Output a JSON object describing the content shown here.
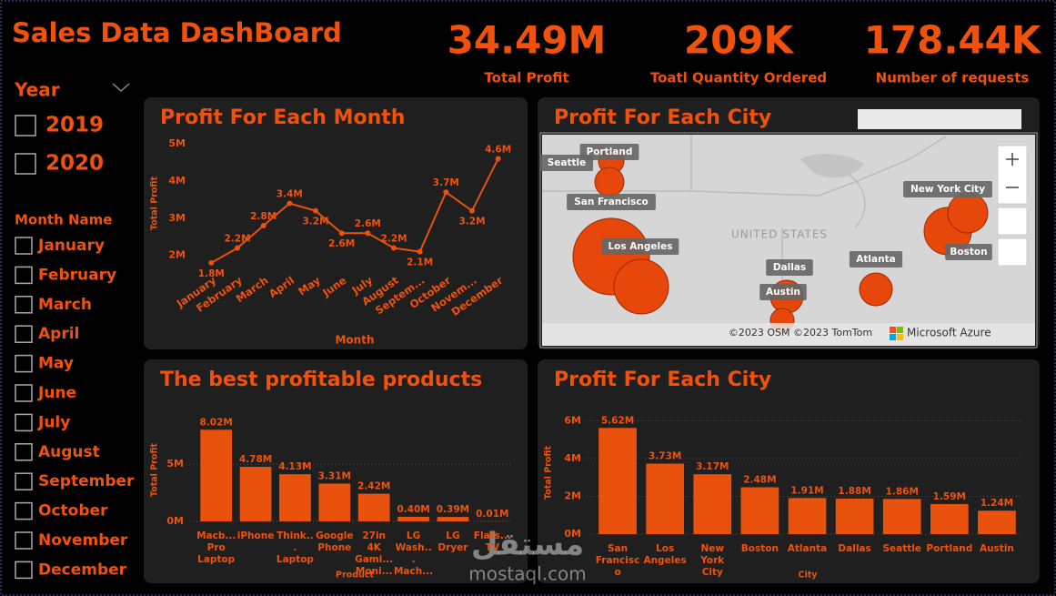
{
  "header": {
    "title": "Sales Data DashBoard"
  },
  "kpis": [
    {
      "value": "34.49M",
      "label": "Total Profit"
    },
    {
      "value": "209K",
      "label": "Toatl Quantity Ordered"
    },
    {
      "value": "178.44K",
      "label": "Number of requests"
    }
  ],
  "slicers": {
    "year": {
      "title": "Year",
      "options": [
        "2019",
        "2020"
      ]
    },
    "month": {
      "title": "Month Name",
      "options": [
        "January",
        "February",
        "March",
        "April",
        "May",
        "June",
        "July",
        "August",
        "September",
        "October",
        "November",
        "December"
      ]
    }
  },
  "chart_data": [
    {
      "type": "line",
      "title": "Profit For Each Month",
      "x_label": "Month",
      "y_label": "Total Profit",
      "categories": [
        "January",
        "February",
        "March",
        "April",
        "May",
        "June",
        "July",
        "August",
        "Septem...",
        "October",
        "Novem...",
        "December"
      ],
      "values": [
        1800000,
        2200000,
        2800000,
        3400000,
        3200000,
        2600000,
        2600000,
        2200000,
        2100000,
        3700000,
        3200000,
        4600000
      ],
      "value_labels": [
        "1.8M",
        "2.2M",
        "2.8M",
        "3.4M",
        "3.2M",
        "2.6M",
        "2.6M",
        "2.2M",
        "2.1M",
        "3.7M",
        "3.2M",
        "4.6M"
      ],
      "color": "#e8520c",
      "ylim": [
        1700000,
        5100000
      ],
      "yticks": [
        {
          "value": 2000000,
          "label": "2M"
        },
        {
          "value": 3000000,
          "label": "3M"
        },
        {
          "value": 4000000,
          "label": "4M"
        },
        {
          "value": 5000000,
          "label": "5M"
        }
      ],
      "grid": false
    },
    {
      "type": "bar",
      "title": "The best profitable products",
      "x_label": "Product",
      "y_label": "Total Profit",
      "categories": [
        "Macb... Pro Laptop",
        "iPhone",
        "Think... Laptop",
        "Google Phone",
        "27in 4K Gami... Moni...",
        "LG Wash... Mach...",
        "LG Dryer",
        "Flats... TV"
      ],
      "values": [
        8020000,
        4780000,
        4130000,
        3310000,
        2420000,
        400000,
        390000,
        10000
      ],
      "value_labels": [
        "8.02M",
        "4.78M",
        "4.13M",
        "3.31M",
        "2.42M",
        "0.40M",
        "0.39M",
        "0.01M"
      ],
      "color": "#e8520c",
      "ylim": [
        0,
        9000000
      ],
      "yticks": [
        {
          "value": 0,
          "label": "0M"
        },
        {
          "value": 5000000,
          "label": "5M"
        }
      ],
      "grid": true
    },
    {
      "type": "bar",
      "title": "Profit For Each City",
      "x_label": "City",
      "y_label": "Total Profit",
      "categories": [
        "San Francisco",
        "Los Angeles",
        "New York City",
        "Boston",
        "Atlanta",
        "Dallas",
        "Seattle",
        "Portland",
        "Austin"
      ],
      "values": [
        5620000,
        3730000,
        3170000,
        2480000,
        1910000,
        1880000,
        1860000,
        1590000,
        1240000
      ],
      "value_labels": [
        "5.62M",
        "3.73M",
        "3.17M",
        "2.48M",
        "1.91M",
        "1.88M",
        "1.86M",
        "1.59M",
        "1.24M"
      ],
      "color": "#e8520c",
      "ylim": [
        0,
        6500000
      ],
      "yticks": [
        {
          "value": 0,
          "label": "0M"
        },
        {
          "value": 2000000,
          "label": "2M"
        },
        {
          "value": 4000000,
          "label": "4M"
        },
        {
          "value": 6000000,
          "label": "6M"
        }
      ],
      "grid": true
    }
  ],
  "map": {
    "title": "Profit For Each City",
    "country": "UNITED STATES",
    "cities": [
      "Portland",
      "Seattle",
      "San Francisco",
      "Los Angeles",
      "Dallas",
      "Austin",
      "Atlanta",
      "New York City",
      "Boston"
    ],
    "attribution": "©2023 OSM ©2023 TomTom",
    "provider": "Microsoft Azure"
  },
  "watermark": [
    "مستقل",
    "mostaql.com"
  ]
}
